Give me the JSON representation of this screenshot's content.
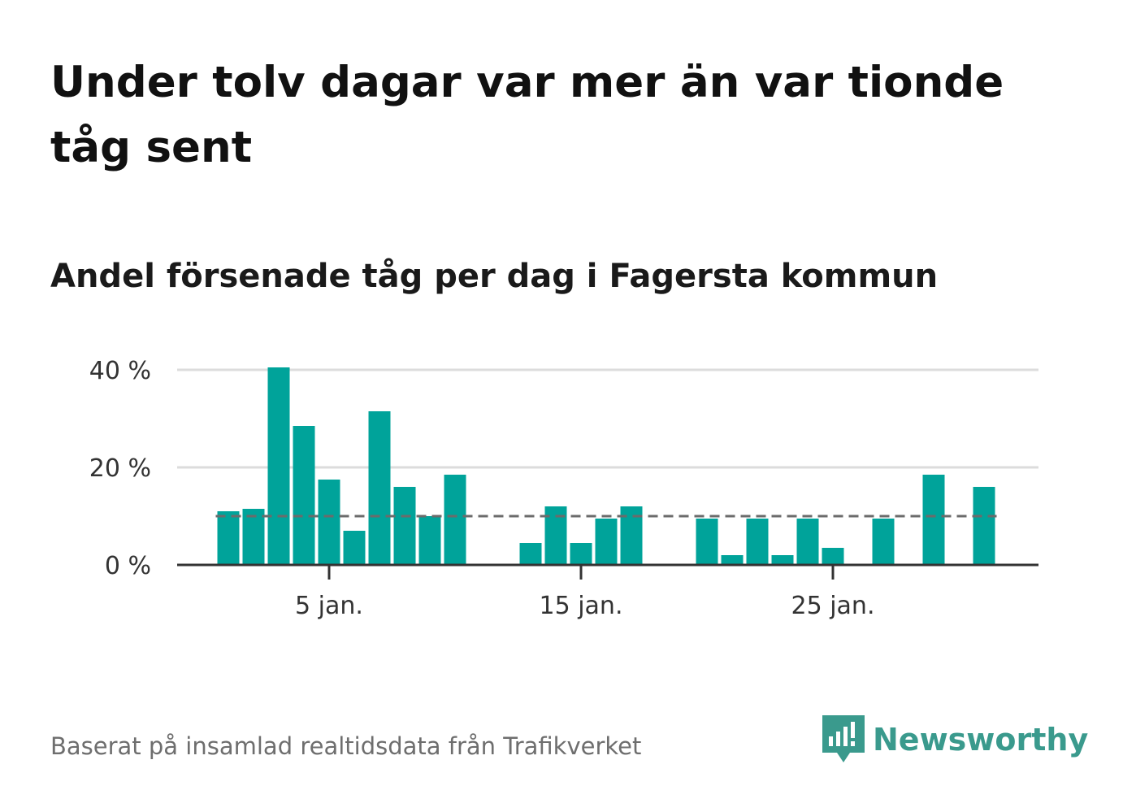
{
  "title": "Under tolv dagar var mer än var tionde tåg sent",
  "subtitle": "Andel försenade tåg per dag i Fagersta kommun",
  "source": "Baserat på insamlad realtidsdata från Trafikverket",
  "brand": {
    "name": "Newsworthy",
    "logo_icon": "bar-chart-speech-bubble-icon",
    "color": "#3a9a8d"
  },
  "chart_data": {
    "type": "bar",
    "title": "Andel försenade tåg per dag i Fagersta kommun",
    "x_unit": "day of January",
    "x": [
      1,
      2,
      3,
      4,
      5,
      6,
      7,
      8,
      9,
      10,
      11,
      12,
      13,
      14,
      15,
      16,
      17,
      18,
      19,
      20,
      21,
      22,
      23,
      24,
      25,
      26,
      27,
      28,
      29,
      30,
      31
    ],
    "values": [
      11,
      11.5,
      40.5,
      28.5,
      17.5,
      7,
      31.5,
      16,
      10,
      18.5,
      0,
      0,
      4.5,
      12,
      4.5,
      9.5,
      12,
      0,
      0,
      9.5,
      2,
      9.5,
      2,
      9.5,
      3.5,
      0,
      9.5,
      0,
      18.5,
      0,
      16
    ],
    "y_unit": "%",
    "ylim": [
      0,
      40
    ],
    "yticks": [
      {
        "value": 0,
        "label": "0 %"
      },
      {
        "value": 20,
        "label": "20 %"
      },
      {
        "value": 40,
        "label": "40 %"
      }
    ],
    "xticks": [
      {
        "value": 5,
        "label": "5 jan."
      },
      {
        "value": 15,
        "label": "15 jan."
      },
      {
        "value": 25,
        "label": "25 jan."
      }
    ],
    "reference_line": {
      "value": 10,
      "style": "dashed",
      "color": "#6b6b6b"
    },
    "bar_color": "#00a39a",
    "grid": true
  }
}
